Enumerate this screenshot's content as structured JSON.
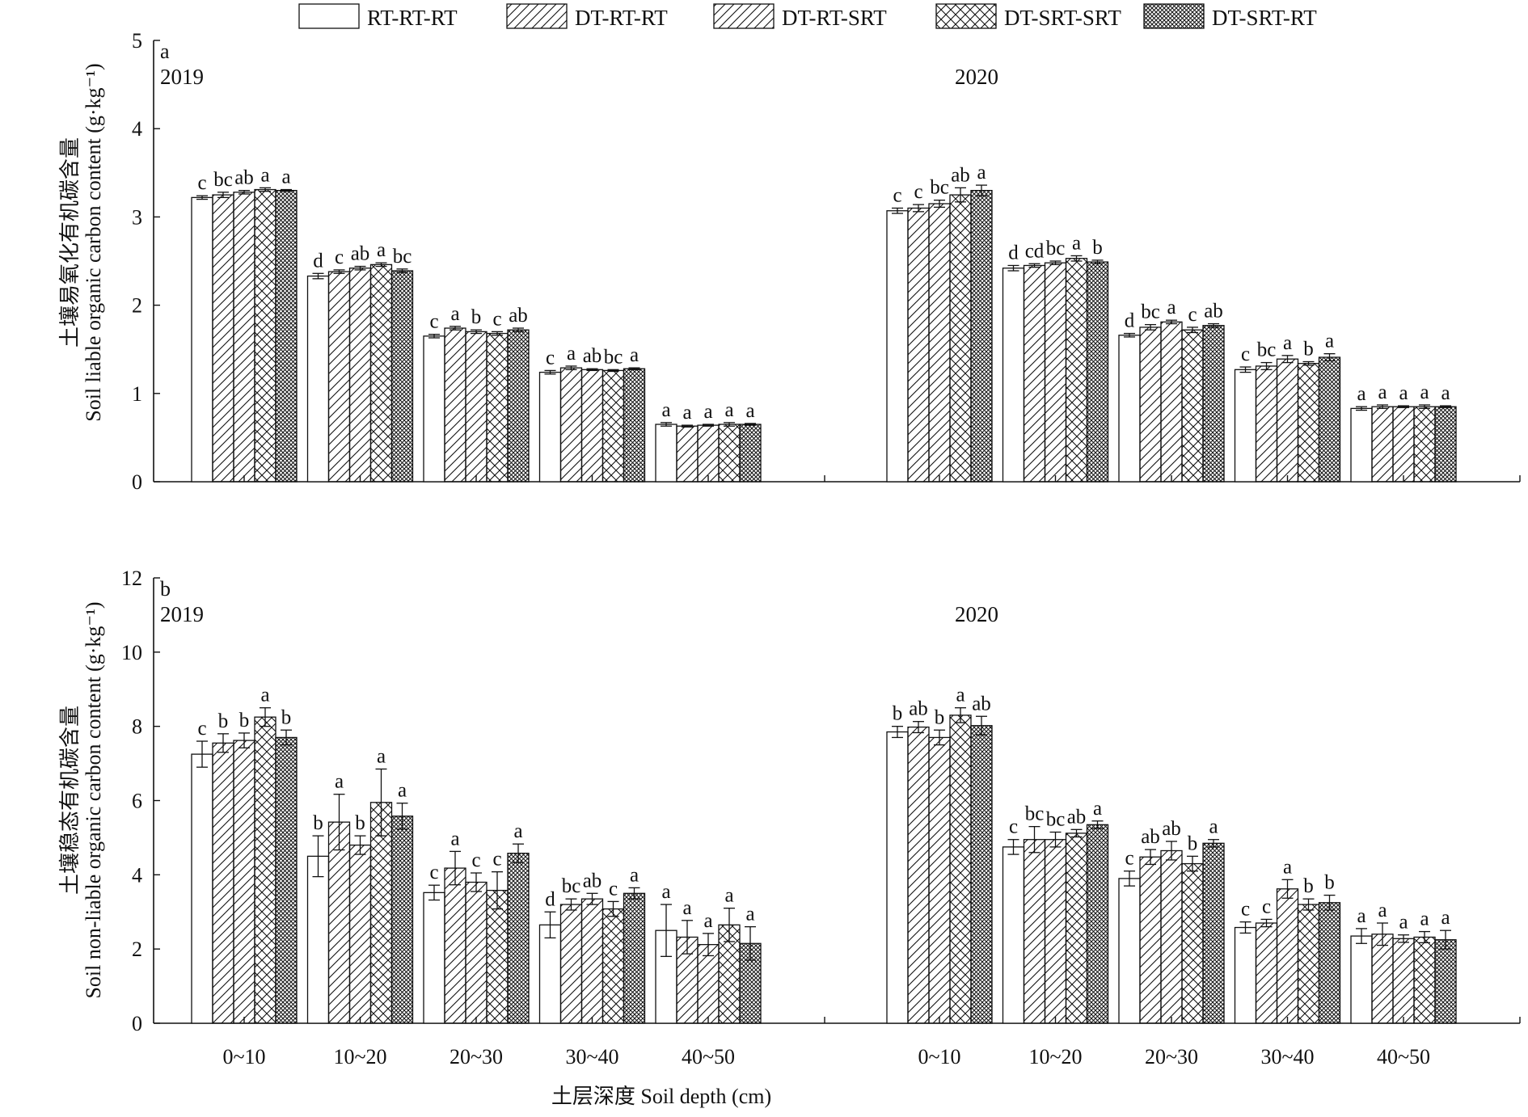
{
  "legend": {
    "items": [
      {
        "label": "RT-RT-RT",
        "pattern": "blank"
      },
      {
        "label": "DT-RT-RT",
        "pattern": "hatch"
      },
      {
        "label": "DT-RT-SRT",
        "pattern": "hatch"
      },
      {
        "label": "DT-SRT-SRT",
        "pattern": "cross"
      },
      {
        "label": "DT-SRT-RT",
        "pattern": "grid"
      }
    ]
  },
  "xlabel": "土层深度 Soil depth (cm)",
  "chart_data": [
    {
      "type": "bar",
      "panel_letter": "a",
      "ylabel_cn": "土壤易氧化有机碳含量",
      "ylabel_en": "Soil liable organic carbon content (g·kg⁻¹)",
      "ylim": [
        0,
        5
      ],
      "yticks": [
        "0",
        "1",
        "2",
        "3",
        "4",
        "5"
      ],
      "groups": [
        {
          "year": "2019",
          "categories": [
            "0~10",
            "10~20",
            "20~30",
            "30~40",
            "40~50"
          ],
          "series": [
            {
              "name": "RT-RT-RT",
              "values": [
                3.22,
                2.33,
                1.65,
                1.24,
                0.65
              ],
              "errors": [
                0.02,
                0.03,
                0.02,
                0.02,
                0.02
              ],
              "letters": [
                "c",
                "d",
                "c",
                "c",
                "a"
              ]
            },
            {
              "name": "DT-RT-RT",
              "values": [
                3.25,
                2.38,
                1.74,
                1.29,
                0.63
              ],
              "errors": [
                0.03,
                0.02,
                0.02,
                0.02,
                0.01
              ],
              "letters": [
                "bc",
                "c",
                "a",
                "a",
                "a"
              ]
            },
            {
              "name": "DT-RT-SRT",
              "values": [
                3.28,
                2.42,
                1.7,
                1.27,
                0.64
              ],
              "errors": [
                0.02,
                0.02,
                0.02,
                0.01,
                0.01
              ],
              "letters": [
                "ab",
                "ab",
                "b",
                "ab",
                "a"
              ]
            },
            {
              "name": "DT-SRT-SRT",
              "values": [
                3.31,
                2.46,
                1.68,
                1.26,
                0.65
              ],
              "errors": [
                0.02,
                0.02,
                0.02,
                0.01,
                0.02
              ],
              "letters": [
                "a",
                "a",
                "c",
                "bc",
                "a"
              ]
            },
            {
              "name": "DT-SRT-RT",
              "values": [
                3.3,
                2.39,
                1.72,
                1.28,
                0.65
              ],
              "errors": [
                0.01,
                0.02,
                0.02,
                0.01,
                0.01
              ],
              "letters": [
                "a",
                "bc",
                "ab",
                "a",
                "a"
              ]
            }
          ]
        },
        {
          "year": "2020",
          "categories": [
            "0~10",
            "10~20",
            "20~30",
            "30~40",
            "40~50"
          ],
          "series": [
            {
              "name": "RT-RT-RT",
              "values": [
                3.07,
                2.42,
                1.66,
                1.27,
                0.83
              ],
              "errors": [
                0.03,
                0.03,
                0.02,
                0.03,
                0.02
              ],
              "letters": [
                "c",
                "d",
                "d",
                "c",
                "a"
              ]
            },
            {
              "name": "DT-RT-RT",
              "values": [
                3.1,
                2.45,
                1.75,
                1.31,
                0.85
              ],
              "errors": [
                0.04,
                0.02,
                0.03,
                0.04,
                0.02
              ],
              "letters": [
                "c",
                "cd",
                "bc",
                "bc",
                "a"
              ]
            },
            {
              "name": "DT-RT-SRT",
              "values": [
                3.15,
                2.48,
                1.81,
                1.39,
                0.85
              ],
              "errors": [
                0.04,
                0.02,
                0.02,
                0.04,
                0.01
              ],
              "letters": [
                "bc",
                "bc",
                "a",
                "a",
                "a"
              ]
            },
            {
              "name": "DT-SRT-SRT",
              "values": [
                3.25,
                2.53,
                1.72,
                1.34,
                0.85
              ],
              "errors": [
                0.08,
                0.03,
                0.03,
                0.02,
                0.02
              ],
              "letters": [
                "ab",
                "a",
                "c",
                "b",
                "a"
              ]
            },
            {
              "name": "DT-SRT-RT",
              "values": [
                3.3,
                2.49,
                1.77,
                1.41,
                0.85
              ],
              "errors": [
                0.06,
                0.02,
                0.02,
                0.04,
                0.01
              ],
              "letters": [
                "a",
                "b",
                "ab",
                "a",
                "a"
              ]
            }
          ]
        }
      ]
    },
    {
      "type": "bar",
      "panel_letter": "b",
      "ylabel_cn": "土壤稳态有机碳含量",
      "ylabel_en": "Soil non-liable organic carbon content (g·kg⁻¹)",
      "ylim": [
        0,
        12
      ],
      "yticks": [
        "0",
        "2",
        "4",
        "6",
        "8",
        "10",
        "12"
      ],
      "groups": [
        {
          "year": "2019",
          "categories": [
            "0~10",
            "10~20",
            "20~30",
            "30~40",
            "40~50"
          ],
          "series": [
            {
              "name": "RT-RT-RT",
              "values": [
                7.25,
                4.5,
                3.52,
                2.65,
                2.5
              ],
              "errors": [
                0.35,
                0.55,
                0.2,
                0.35,
                0.7
              ],
              "letters": [
                "c",
                "b",
                "c",
                "d",
                "a"
              ]
            },
            {
              "name": "DT-RT-RT",
              "values": [
                7.55,
                5.42,
                4.18,
                3.2,
                2.32
              ],
              "errors": [
                0.25,
                0.75,
                0.45,
                0.15,
                0.45
              ],
              "letters": [
                "b",
                "a",
                "a",
                "bc",
                "a"
              ]
            },
            {
              "name": "DT-RT-SRT",
              "values": [
                7.62,
                4.8,
                3.8,
                3.35,
                2.12
              ],
              "errors": [
                0.2,
                0.25,
                0.25,
                0.15,
                0.3
              ],
              "letters": [
                "b",
                "b",
                "c",
                "ab",
                "a"
              ]
            },
            {
              "name": "DT-SRT-SRT",
              "values": [
                8.25,
                5.95,
                3.58,
                3.08,
                2.65
              ],
              "errors": [
                0.25,
                0.9,
                0.5,
                0.2,
                0.45
              ],
              "letters": [
                "a",
                "a",
                "c",
                "c",
                "a"
              ]
            },
            {
              "name": "DT-SRT-RT",
              "values": [
                7.7,
                5.58,
                4.58,
                3.5,
                2.15
              ],
              "errors": [
                0.2,
                0.35,
                0.25,
                0.15,
                0.45
              ],
              "letters": [
                "b",
                "a",
                "a",
                "a",
                "a"
              ]
            }
          ]
        },
        {
          "year": "2020",
          "categories": [
            "0~10",
            "10~20",
            "20~30",
            "30~40",
            "40~50"
          ],
          "series": [
            {
              "name": "RT-RT-RT",
              "values": [
                7.85,
                4.75,
                3.9,
                2.58,
                2.35
              ],
              "errors": [
                0.15,
                0.2,
                0.2,
                0.15,
                0.2
              ],
              "letters": [
                "b",
                "c",
                "c",
                "c",
                "a"
              ]
            },
            {
              "name": "DT-RT-RT",
              "values": [
                7.98,
                4.95,
                4.48,
                2.7,
                2.4
              ],
              "errors": [
                0.15,
                0.35,
                0.2,
                0.1,
                0.3
              ],
              "letters": [
                "ab",
                "bc",
                "ab",
                "c",
                "a"
              ]
            },
            {
              "name": "DT-RT-SRT",
              "values": [
                7.7,
                4.95,
                4.65,
                3.62,
                2.28
              ],
              "errors": [
                0.2,
                0.2,
                0.25,
                0.25,
                0.1
              ],
              "letters": [
                "b",
                "bc",
                "ab",
                "a",
                "a"
              ]
            },
            {
              "name": "DT-SRT-SRT",
              "values": [
                8.3,
                5.12,
                4.3,
                3.2,
                2.32
              ],
              "errors": [
                0.2,
                0.1,
                0.2,
                0.15,
                0.15
              ],
              "letters": [
                "a",
                "ab",
                "b",
                "b",
                "a"
              ]
            },
            {
              "name": "DT-SRT-RT",
              "values": [
                8.02,
                5.35,
                4.85,
                3.25,
                2.25
              ],
              "errors": [
                0.25,
                0.1,
                0.1,
                0.2,
                0.25
              ],
              "letters": [
                "ab",
                "a",
                "a",
                "b",
                "a"
              ]
            }
          ]
        }
      ]
    }
  ]
}
